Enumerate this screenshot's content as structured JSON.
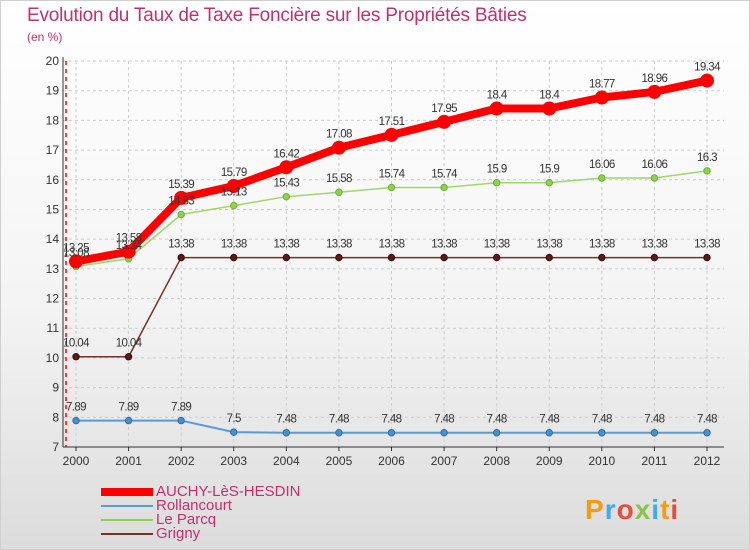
{
  "chart_data": {
    "type": "line",
    "title": "Evolution du Taux de Taxe Foncière sur les Propriétés Bâties",
    "ylabel": "(en %)",
    "xlabel": "",
    "x": [
      "2000",
      "2001",
      "2002",
      "2003",
      "2004",
      "2005",
      "2006",
      "2007",
      "2008",
      "2009",
      "2010",
      "2011",
      "2012"
    ],
    "ylim": [
      7,
      20
    ],
    "yticks": [
      7,
      8,
      9,
      10,
      11,
      12,
      13,
      14,
      15,
      16,
      17,
      18,
      19,
      20
    ],
    "grid": true,
    "series": [
      {
        "name": "AUCHY-LèS-HESDIN",
        "color": "#ff0000",
        "values": [
          13.25,
          13.58,
          15.39,
          15.79,
          16.42,
          17.08,
          17.51,
          17.95,
          18.4,
          18.4,
          18.77,
          18.96,
          19.34
        ],
        "labels": [
          "13.25",
          "13.58",
          "15.39",
          "15.79",
          "16.42",
          "17.08",
          "17.51",
          "17.95",
          "18.4",
          "18.4",
          "18.77",
          "18.96",
          "19.34"
        ]
      },
      {
        "name": "Rollancourt",
        "color": "#5b9bd5",
        "values": [
          7.89,
          7.89,
          7.89,
          7.5,
          7.48,
          7.48,
          7.48,
          7.48,
          7.48,
          7.48,
          7.48,
          7.48,
          7.48
        ],
        "labels": [
          "7.89",
          "7.89",
          "7.89",
          "7.5",
          "7.48",
          "7.48",
          "7.48",
          "7.48",
          "7.48",
          "7.48",
          "7.48",
          "7.48",
          "7.48"
        ]
      },
      {
        "name": "Le Parcq",
        "color": "#8fd14f",
        "values": [
          13.08,
          13.34,
          14.83,
          15.13,
          15.43,
          15.58,
          15.74,
          15.74,
          15.9,
          15.9,
          16.06,
          16.06,
          16.3
        ],
        "labels": [
          "13.08",
          "13.34",
          "14.83",
          "15.13",
          "15.43",
          "15.58",
          "15.74",
          "15.74",
          "15.9",
          "15.9",
          "16.06",
          "16.06",
          "16.3"
        ]
      },
      {
        "name": "Grigny",
        "color": "#7a2e2e",
        "values": [
          10.04,
          10.04,
          13.38,
          13.38,
          13.38,
          13.38,
          13.38,
          13.38,
          13.38,
          13.38,
          13.38,
          13.38,
          13.38
        ],
        "labels": [
          "10.04",
          "10.04",
          "13.38",
          "13.38",
          "13.38",
          "13.38",
          "13.38",
          "13.38",
          "13.38",
          "13.38",
          "13.38",
          "13.38",
          "13.38"
        ]
      }
    ]
  },
  "logo": {
    "text": "Proxiti"
  }
}
